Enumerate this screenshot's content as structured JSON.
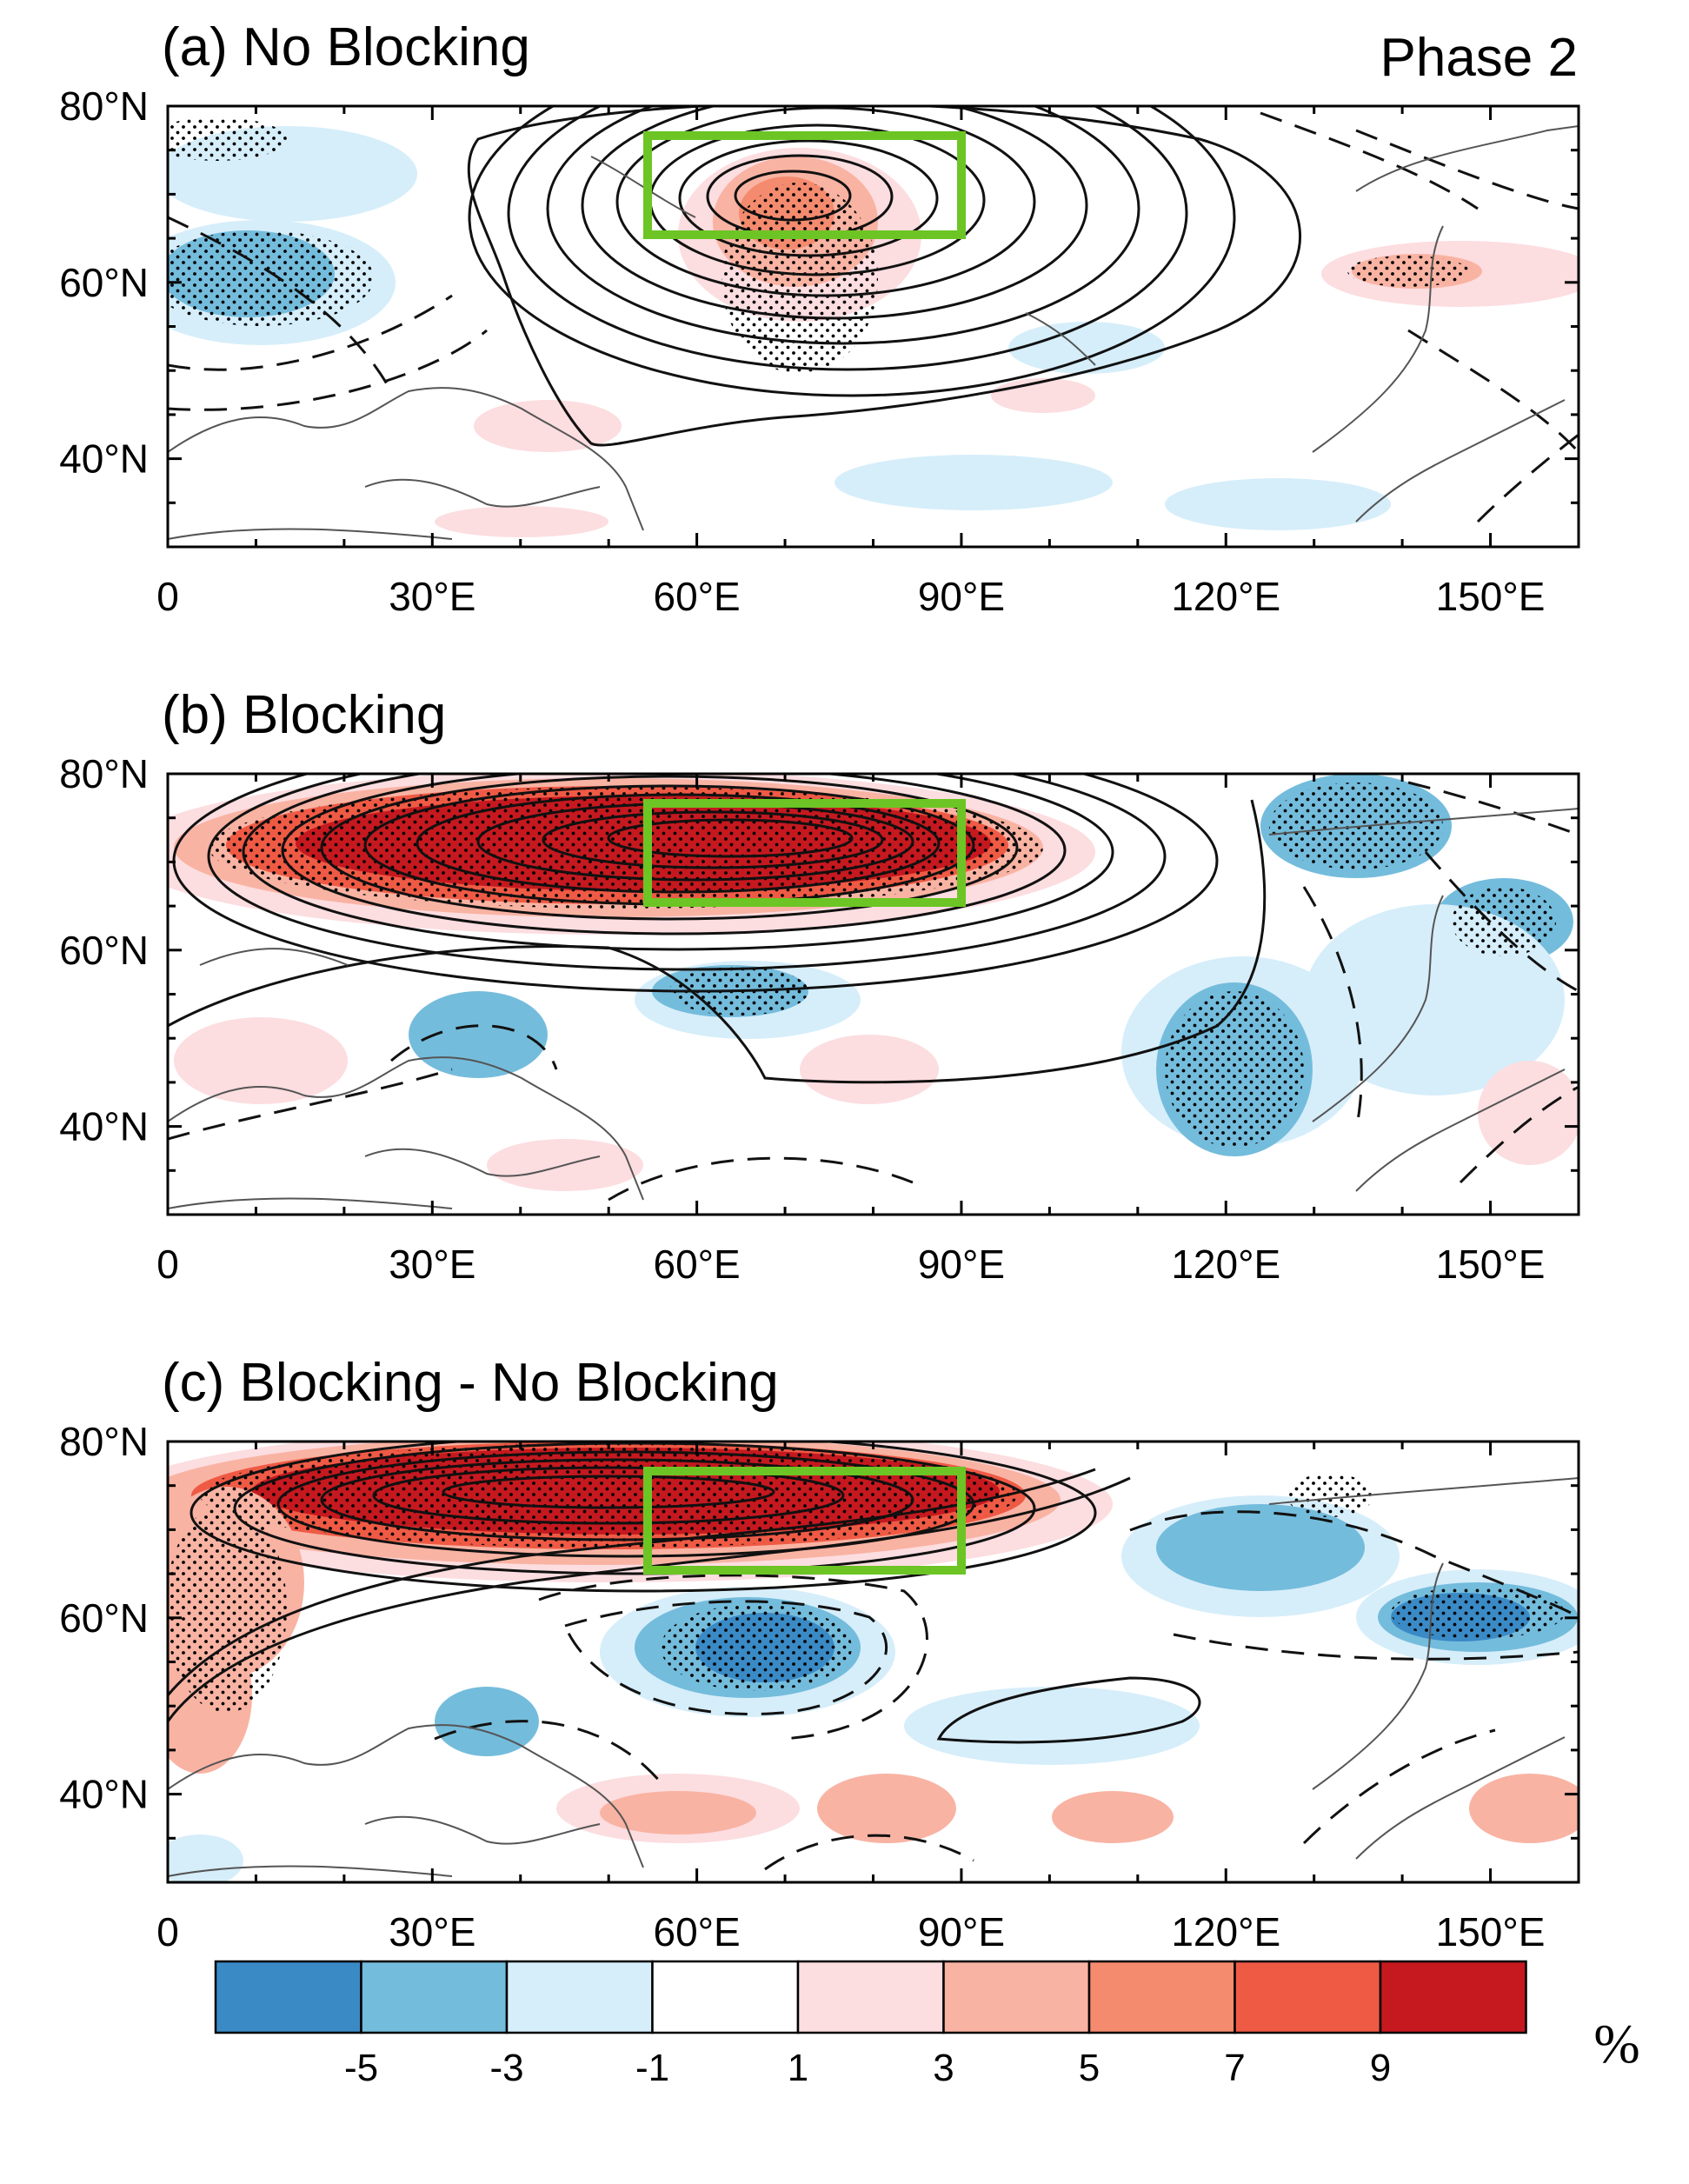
{
  "figure": {
    "phase_label": "Phase 2",
    "panels": [
      {
        "id": "a",
        "title": "(a) No Blocking"
      },
      {
        "id": "b",
        "title": "(b) Blocking"
      },
      {
        "id": "c",
        "title": "(c) Blocking - No Blocking"
      }
    ],
    "x_ticks": [
      {
        "lon": 0,
        "label": "0"
      },
      {
        "lon": 30,
        "label": "30°E"
      },
      {
        "lon": 60,
        "label": "60°E"
      },
      {
        "lon": 90,
        "label": "90°E"
      },
      {
        "lon": 120,
        "label": "120°E"
      },
      {
        "lon": 150,
        "label": "150°E"
      }
    ],
    "y_ticks": [
      {
        "lat": 80,
        "label": "80°N"
      },
      {
        "lat": 60,
        "label": "60°N"
      },
      {
        "lat": 40,
        "label": "40°N"
      }
    ],
    "extent": {
      "lon": [
        0,
        160
      ],
      "lat": [
        30,
        80
      ]
    },
    "box_region": {
      "lon": [
        55,
        90
      ],
      "lat": [
        65,
        76
      ]
    },
    "colorbar": {
      "unit": "%",
      "labels": [
        "-5",
        "-3",
        "-1",
        "1",
        "3",
        "5",
        "7",
        "9"
      ],
      "colors": [
        "#3a8ac6",
        "#74bcdc",
        "#d6eefa",
        "#ffffff",
        "#fcdde0",
        "#f9b3a3",
        "#f48b6e",
        "#ef5a45",
        "#c5191f"
      ]
    },
    "colors": {
      "box": "#6cc524",
      "coast": "#555555",
      "contour": "#111111"
    }
  }
}
